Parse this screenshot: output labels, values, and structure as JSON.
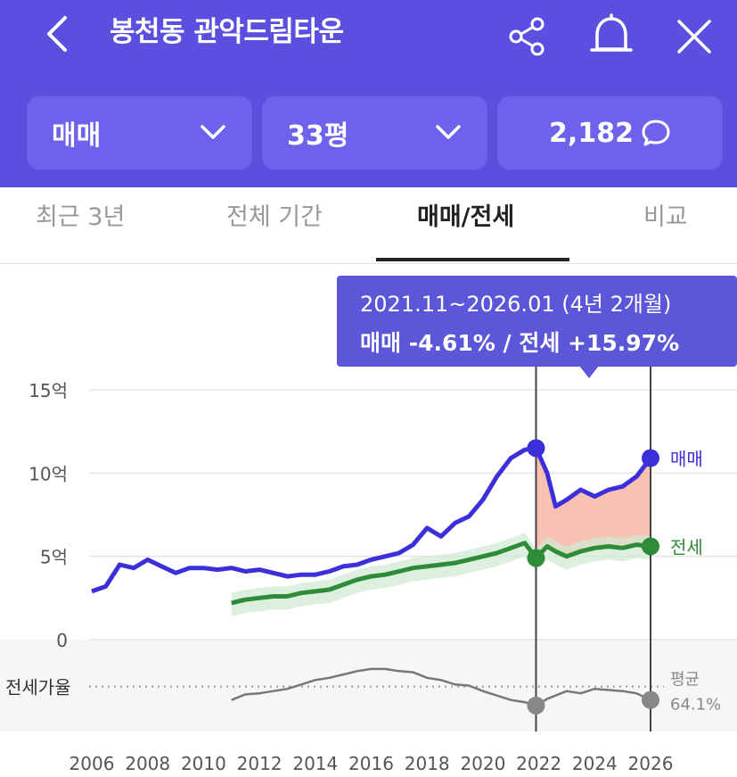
{
  "header": {
    "title": "봉천동 관악드림타운",
    "back_icon": "chevron-left-icon",
    "share_icon": "share-icon",
    "bell_icon": "bell-icon",
    "close_icon": "close-icon",
    "bg_color": "#5b4fe0"
  },
  "filters": {
    "trade_type": "매매",
    "area": "33평",
    "comments_count": "2,182",
    "comment_icon": "chat-bubble-icon"
  },
  "tabs": [
    {
      "label": "최근 3년",
      "active": false
    },
    {
      "label": "전체 기간",
      "active": false
    },
    {
      "label": "매매/전세",
      "active": true
    },
    {
      "label": "비교",
      "active": false
    }
  ],
  "tooltip": {
    "period": "2021.11~2026.01 (4년 2개월)",
    "change": "매매 -4.61%  /  전세 +15.97%"
  },
  "chart_data": {
    "type": "line",
    "y_ticks": [
      "15억",
      "10억",
      "5억",
      "0"
    ],
    "x_ticks": [
      "2006",
      "2008",
      "2010",
      "2012",
      "2014",
      "2016",
      "2018",
      "2020",
      "2022",
      "2024",
      "2026"
    ],
    "ylim": [
      0,
      15
    ],
    "series": [
      {
        "name": "매매",
        "color": "#3b2fd9",
        "x": [
          2006.0,
          2006.5,
          2007.0,
          2007.5,
          2008.0,
          2008.5,
          2009.0,
          2009.5,
          2010.0,
          2010.5,
          2011.0,
          2011.5,
          2012.0,
          2012.5,
          2013.0,
          2013.5,
          2014.0,
          2014.5,
          2015.0,
          2015.5,
          2016.0,
          2016.5,
          2017.0,
          2017.5,
          2018.0,
          2018.5,
          2019.0,
          2019.5,
          2020.0,
          2020.5,
          2021.0,
          2021.5,
          2021.9,
          2022.3,
          2022.6,
          2023.0,
          2023.5,
          2024.0,
          2024.5,
          2025.0,
          2025.5,
          2026.0
        ],
        "y": [
          2.9,
          3.2,
          4.5,
          4.3,
          4.8,
          4.4,
          4.0,
          4.3,
          4.3,
          4.2,
          4.3,
          4.1,
          4.2,
          4.0,
          3.8,
          3.9,
          3.9,
          4.1,
          4.4,
          4.5,
          4.8,
          5.0,
          5.2,
          5.7,
          6.7,
          6.2,
          7.0,
          7.4,
          8.4,
          9.8,
          10.9,
          11.4,
          11.5,
          10.0,
          8.0,
          8.4,
          9.0,
          8.6,
          9.0,
          9.2,
          9.8,
          10.9
        ]
      },
      {
        "name": "전세",
        "color": "#2e8b37",
        "x": [
          2011.0,
          2011.5,
          2012.0,
          2012.5,
          2013.0,
          2013.5,
          2014.0,
          2014.5,
          2015.0,
          2015.5,
          2016.0,
          2016.5,
          2017.0,
          2017.5,
          2018.0,
          2018.5,
          2019.0,
          2019.5,
          2020.0,
          2020.5,
          2021.0,
          2021.5,
          2021.9,
          2022.3,
          2022.6,
          2023.0,
          2023.5,
          2024.0,
          2024.5,
          2025.0,
          2025.5,
          2026.0
        ],
        "y": [
          2.2,
          2.4,
          2.5,
          2.6,
          2.6,
          2.8,
          2.9,
          3.0,
          3.3,
          3.6,
          3.8,
          3.9,
          4.1,
          4.3,
          4.4,
          4.5,
          4.6,
          4.8,
          5.0,
          5.2,
          5.5,
          5.8,
          4.9,
          5.6,
          5.3,
          5.0,
          5.3,
          5.5,
          5.6,
          5.5,
          5.7,
          5.6
        ]
      },
      {
        "name": "전세가율",
        "color": "#777777",
        "x": [
          2011.0,
          2011.5,
          2012.0,
          2012.5,
          2013.0,
          2013.5,
          2014.0,
          2014.5,
          2015.0,
          2015.5,
          2016.0,
          2016.5,
          2017.0,
          2017.5,
          2018.0,
          2018.5,
          2019.0,
          2019.5,
          2020.0,
          2020.5,
          2021.0,
          2021.5,
          2021.9,
          2022.3,
          2022.6,
          2023.0,
          2023.5,
          2024.0,
          2024.5,
          2025.0,
          2025.5,
          2026.0
        ],
        "y": [
          52,
          57,
          58,
          60,
          62,
          66,
          70,
          72,
          75,
          78,
          80,
          80,
          78,
          77,
          72,
          70,
          66,
          65,
          60,
          56,
          52,
          50,
          47,
          53,
          56,
          60,
          58,
          62,
          61,
          60,
          58,
          52
        ]
      }
    ],
    "ratio_label": "전세가율",
    "avg_label": "평균",
    "avg_value": "64.1%",
    "ratio_avg": 64.1,
    "markers": {
      "start": 2021.9,
      "end": 2026.0
    },
    "label_sale": "매매",
    "label_jeonse": "전세"
  }
}
